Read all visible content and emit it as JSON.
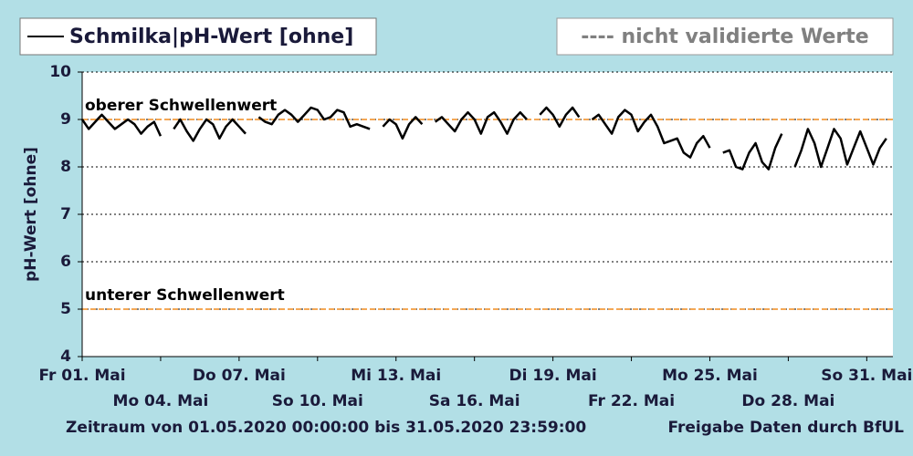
{
  "chart_data": {
    "type": "line",
    "ylabel": "pH-Wert [ohne]",
    "legend_note": "---- nicht validierte Werte",
    "footer_left": "Zeitraum von 01.05.2020 00:00:00 bis 31.05.2020 23:59:00",
    "footer_right": "Freigabe Daten durch BfUL",
    "xlim": [
      0,
      31
    ],
    "xticks": [
      {
        "value": 0,
        "label": "Fr 01. Mai"
      },
      {
        "value": 3,
        "label": "Mo 04. Mai"
      },
      {
        "value": 6,
        "label": "Do 07. Mai"
      },
      {
        "value": 9,
        "label": "So 10. Mai"
      },
      {
        "value": 12,
        "label": "Mi 13. Mai"
      },
      {
        "value": 15,
        "label": "Sa 16. Mai"
      },
      {
        "value": 18,
        "label": "Di 19. Mai"
      },
      {
        "value": 21,
        "label": "Fr 22. Mai"
      },
      {
        "value": 24,
        "label": "Mo 25. Mai"
      },
      {
        "value": 27,
        "label": "Do 28. Mai"
      },
      {
        "value": 30,
        "label": "So 31. Mai"
      }
    ],
    "ylim": [
      4,
      10
    ],
    "yticks": [
      4,
      5,
      6,
      7,
      8,
      9,
      10
    ],
    "grid": true,
    "reference_lines": [
      {
        "value": 9,
        "label": "oberer Schwellenwert",
        "color": "#f08c1e"
      },
      {
        "value": 5,
        "label": "unterer Schwellenwert",
        "color": "#f08c1e"
      }
    ],
    "x": [
      0,
      0.25,
      0.5,
      0.75,
      1,
      1.25,
      1.5,
      1.75,
      2,
      2.25,
      2.5,
      2.75,
      3,
      3.25,
      3.5,
      3.75,
      4,
      4.25,
      4.5,
      4.75,
      5,
      5.25,
      5.5,
      5.75,
      6,
      6.25,
      6.5,
      6.75,
      7,
      7.25,
      7.5,
      7.75,
      8,
      8.25,
      8.5,
      8.75,
      9,
      9.25,
      9.5,
      9.75,
      10,
      10.25,
      10.5,
      10.75,
      11,
      11.25,
      11.5,
      11.75,
      12,
      12.25,
      12.5,
      12.75,
      13,
      13.25,
      13.5,
      13.75,
      14,
      14.25,
      14.5,
      14.75,
      15,
      15.25,
      15.5,
      15.75,
      16,
      16.25,
      16.5,
      16.75,
      17,
      17.25,
      17.5,
      17.75,
      18,
      18.25,
      18.5,
      18.75,
      19,
      19.25,
      19.5,
      19.75,
      20,
      20.25,
      20.5,
      20.75,
      21,
      21.25,
      21.5,
      21.75,
      22,
      22.25,
      22.5,
      22.75,
      23,
      23.25,
      23.5,
      23.75,
      24,
      24.25,
      24.5,
      24.75,
      25,
      25.25,
      25.5,
      25.75,
      26,
      26.25,
      26.5,
      26.75,
      27,
      27.25,
      27.5,
      27.75,
      28,
      28.25,
      28.5,
      28.75,
      29,
      29.25,
      29.5,
      29.75,
      30,
      30.25,
      30.5,
      30.75
    ],
    "series": [
      {
        "name": "Schmilka|pH-Wert [ohne]",
        "color": "#000000",
        "values": [
          9.0,
          8.8,
          8.95,
          9.1,
          8.95,
          8.8,
          8.9,
          9.0,
          8.9,
          8.7,
          8.85,
          8.95,
          8.65,
          null,
          8.8,
          9.0,
          8.75,
          8.55,
          8.8,
          9.0,
          8.9,
          8.6,
          8.85,
          9.0,
          8.85,
          8.7,
          null,
          9.05,
          8.95,
          8.9,
          9.1,
          9.2,
          9.1,
          8.95,
          9.1,
          9.25,
          9.2,
          9.0,
          9.05,
          9.2,
          9.15,
          8.85,
          8.9,
          8.85,
          8.8,
          null,
          8.85,
          9.0,
          8.9,
          8.6,
          8.9,
          9.05,
          8.9,
          null,
          8.95,
          9.05,
          8.9,
          8.75,
          9.0,
          9.15,
          9.0,
          8.7,
          9.05,
          9.15,
          8.95,
          8.7,
          9.0,
          9.15,
          9.0,
          null,
          9.1,
          9.25,
          9.1,
          8.85,
          9.1,
          9.25,
          9.05,
          null,
          9.0,
          9.1,
          8.9,
          8.7,
          9.05,
          9.2,
          9.1,
          8.75,
          8.95,
          9.1,
          8.85,
          8.5,
          8.55,
          8.6,
          8.3,
          8.2,
          8.5,
          8.65,
          8.4,
          null,
          8.3,
          8.35,
          8.0,
          7.95,
          8.3,
          8.5,
          8.1,
          7.95,
          8.4,
          8.7,
          null,
          8.0,
          8.35,
          8.8,
          8.5,
          8.0,
          8.4,
          8.8,
          8.6,
          8.05,
          8.4,
          8.75,
          8.4,
          8.05,
          8.4,
          8.6
        ]
      }
    ]
  }
}
